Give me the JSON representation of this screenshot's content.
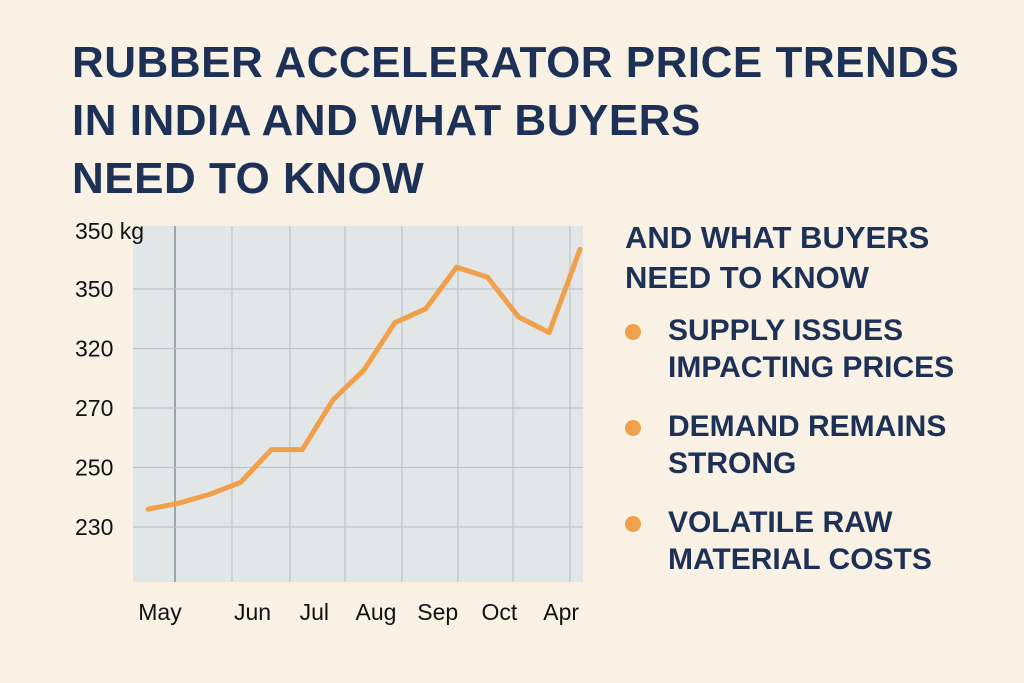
{
  "chart_data": {
    "type": "line",
    "title_lines": [
      "RUBBER ACCELERATOR PRICE TRENDS",
      "IN INDIA AND WHAT BUYERS",
      "NEED TO KNOW"
    ],
    "y_label": "350 kg",
    "categories": [
      "May",
      null,
      null,
      "Jun",
      null,
      "Jul",
      null,
      "Aug",
      null,
      "Sep",
      null,
      "Oct",
      null,
      "Apr",
      null
    ],
    "values": [
      236,
      238,
      241,
      245,
      256,
      256,
      277,
      302,
      333,
      340,
      361,
      356,
      336,
      328,
      370
    ],
    "color": "#f0a04b",
    "yticks": [
      230,
      250,
      270,
      320,
      350
    ],
    "grid": true
  },
  "sidebar": {
    "heading": "AND WHAT BUYERS NEED TO KNOW",
    "bullets": [
      "SUPPLY ISSUES IMPACTING PRICES",
      "DEMAND REMAINS STRONG",
      "VOLATILE RAW MATERIAL COSTS"
    ]
  }
}
